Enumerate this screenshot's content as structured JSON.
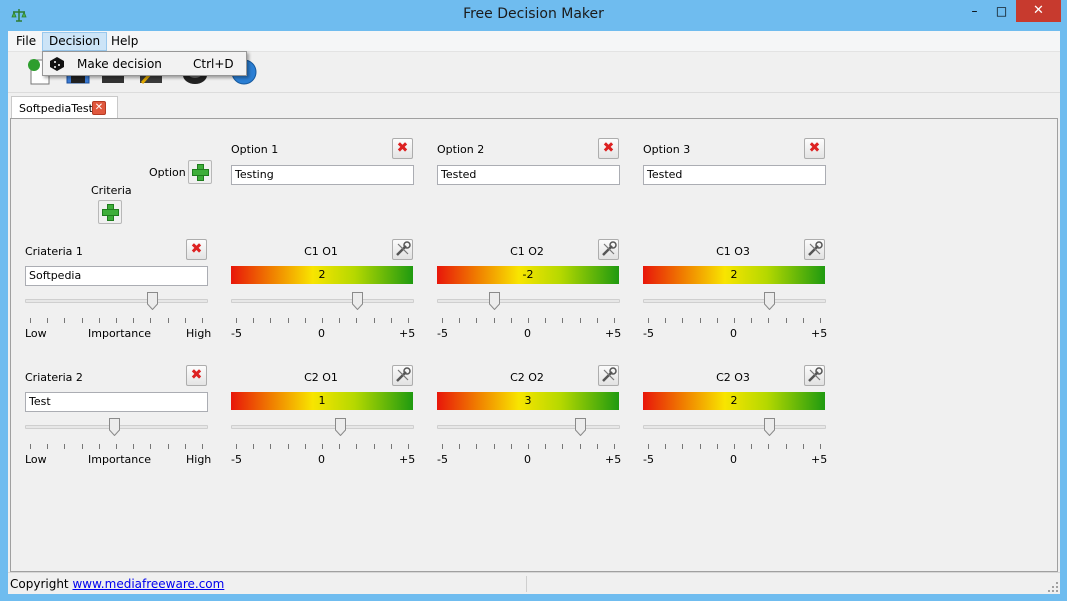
{
  "window": {
    "title": "Free Decision Maker",
    "minimize": "–",
    "maximize": "□",
    "close": "✕"
  },
  "menu": {
    "items": [
      {
        "label": "File"
      },
      {
        "label": "Decision"
      },
      {
        "label": "Help"
      }
    ]
  },
  "dropdown": {
    "label": "Make decision",
    "shortcut": "Ctrl+D"
  },
  "tab": {
    "label": "SoftpediaTest",
    "close": "✕"
  },
  "labels": {
    "option": "Option",
    "criteria": "Criteria",
    "low": "Low",
    "importance": "Importance",
    "high": "High",
    "min": "-5",
    "zero": "0",
    "max": "+5"
  },
  "options": [
    {
      "label": "Option 1",
      "value": "Testing"
    },
    {
      "label": "Option 2",
      "value": "Tested"
    },
    {
      "label": "Option 3",
      "value": "Tested"
    }
  ],
  "criteria": [
    {
      "label": "Criateria 1",
      "value": "Softpedia",
      "importance": 0.72,
      "scores": [
        {
          "label": "C1 O1",
          "value": "2",
          "level": 2
        },
        {
          "label": "C1 O2",
          "value": "-2",
          "level": -2
        },
        {
          "label": "C1 O3",
          "value": "2",
          "level": 2
        }
      ]
    },
    {
      "label": "Criateria 2",
      "value": "Test",
      "importance": 0.5,
      "scores": [
        {
          "label": "C2 O1",
          "value": "1",
          "level": 1
        },
        {
          "label": "C2 O2",
          "value": "3",
          "level": 3
        },
        {
          "label": "C2 O3",
          "value": "2",
          "level": 2
        }
      ]
    }
  ],
  "status": {
    "copyright": "Copyright",
    "link": "www.mediafreeware.com"
  },
  "icons": {
    "app": "scales-icon",
    "delete": "delete-x-icon",
    "add": "plus-icon",
    "edit": "wrench-icon"
  }
}
